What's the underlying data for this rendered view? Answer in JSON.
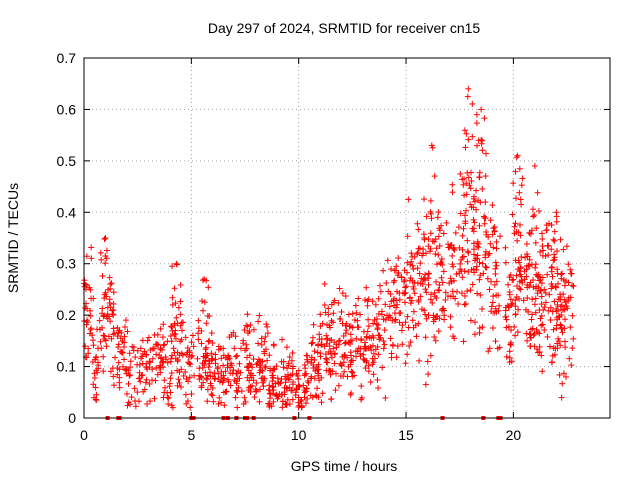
{
  "chart_data": {
    "type": "scatter",
    "title": "Day 297 of 2024, SRMTID for receiver cn15",
    "xlabel": "GPS time / hours",
    "ylabel": "SRMTID / TECUs",
    "xlim": [
      0,
      24.5
    ],
    "ylim": [
      0,
      0.7
    ],
    "x_ticks": [
      "0",
      "5",
      "10",
      "15",
      "20"
    ],
    "x_tick_values": [
      0,
      5,
      10,
      15,
      20
    ],
    "y_ticks": [
      "0",
      "0.1",
      "0.2",
      "0.3",
      "0.4",
      "0.5",
      "0.6",
      "0.7"
    ],
    "y_tick_values": [
      0,
      0.1,
      0.2,
      0.3,
      0.4,
      0.5,
      0.6,
      0.7
    ],
    "grid": true,
    "marker": "+",
    "color": "#ff0000",
    "zero_markers_x": [
      1.1,
      1.6,
      1.65,
      5.0,
      5.1,
      6.5,
      6.7,
      7.1,
      7.5,
      7.6,
      7.9,
      9.8,
      10.5,
      16.7,
      18.6,
      19.3,
      19.4
    ],
    "series_profile": [
      {
        "x": 0.0,
        "y": 0.26
      },
      {
        "x": 0.3,
        "y": 0.2
      },
      {
        "x": 0.5,
        "y": 0.11
      },
      {
        "x": 0.8,
        "y": 0.16
      },
      {
        "x": 1.0,
        "y": 0.19
      },
      {
        "x": 1.3,
        "y": 0.2
      },
      {
        "x": 1.6,
        "y": 0.12
      },
      {
        "x": 2.0,
        "y": 0.09
      },
      {
        "x": 2.5,
        "y": 0.08
      },
      {
        "x": 3.0,
        "y": 0.09
      },
      {
        "x": 3.5,
        "y": 0.11
      },
      {
        "x": 4.0,
        "y": 0.1
      },
      {
        "x": 4.5,
        "y": 0.12
      },
      {
        "x": 5.0,
        "y": 0.11
      },
      {
        "x": 5.5,
        "y": 0.1
      },
      {
        "x": 6.0,
        "y": 0.09
      },
      {
        "x": 6.5,
        "y": 0.08
      },
      {
        "x": 7.0,
        "y": 0.09
      },
      {
        "x": 7.5,
        "y": 0.1
      },
      {
        "x": 8.0,
        "y": 0.09
      },
      {
        "x": 8.5,
        "y": 0.1
      },
      {
        "x": 9.0,
        "y": 0.07
      },
      {
        "x": 9.5,
        "y": 0.07
      },
      {
        "x": 10.0,
        "y": 0.05
      },
      {
        "x": 10.5,
        "y": 0.09
      },
      {
        "x": 11.0,
        "y": 0.12
      },
      {
        "x": 11.5,
        "y": 0.14
      },
      {
        "x": 12.0,
        "y": 0.15
      },
      {
        "x": 12.5,
        "y": 0.13
      },
      {
        "x": 13.0,
        "y": 0.14
      },
      {
        "x": 13.5,
        "y": 0.15
      },
      {
        "x": 14.0,
        "y": 0.16
      },
      {
        "x": 14.5,
        "y": 0.19
      },
      {
        "x": 15.0,
        "y": 0.24
      },
      {
        "x": 15.5,
        "y": 0.26
      },
      {
        "x": 16.0,
        "y": 0.26
      },
      {
        "x": 16.5,
        "y": 0.27
      },
      {
        "x": 17.0,
        "y": 0.29
      },
      {
        "x": 17.5,
        "y": 0.31
      },
      {
        "x": 18.0,
        "y": 0.33
      },
      {
        "x": 18.5,
        "y": 0.31
      },
      {
        "x": 19.0,
        "y": 0.3
      },
      {
        "x": 19.5,
        "y": 0.21
      },
      {
        "x": 20.0,
        "y": 0.2
      },
      {
        "x": 20.5,
        "y": 0.3
      },
      {
        "x": 21.0,
        "y": 0.18
      },
      {
        "x": 21.5,
        "y": 0.26
      },
      {
        "x": 22.0,
        "y": 0.22
      },
      {
        "x": 22.5,
        "y": 0.19
      },
      {
        "x": 22.8,
        "y": 0.21
      }
    ],
    "peaks": [
      {
        "x": 1.0,
        "y": 0.35
      },
      {
        "x": 4.3,
        "y": 0.3
      },
      {
        "x": 5.6,
        "y": 0.27
      },
      {
        "x": 16.2,
        "y": 0.53
      },
      {
        "x": 17.9,
        "y": 0.64
      },
      {
        "x": 18.5,
        "y": 0.6
      },
      {
        "x": 20.2,
        "y": 0.51
      },
      {
        "x": 21.0,
        "y": 0.49
      },
      {
        "x": 22.0,
        "y": 0.4
      }
    ],
    "gap_intervals": [
      [
        1.45,
        1.55
      ],
      [
        5.15,
        5.25
      ],
      [
        9.75,
        9.85
      ],
      [
        19.45,
        19.6
      ]
    ]
  }
}
